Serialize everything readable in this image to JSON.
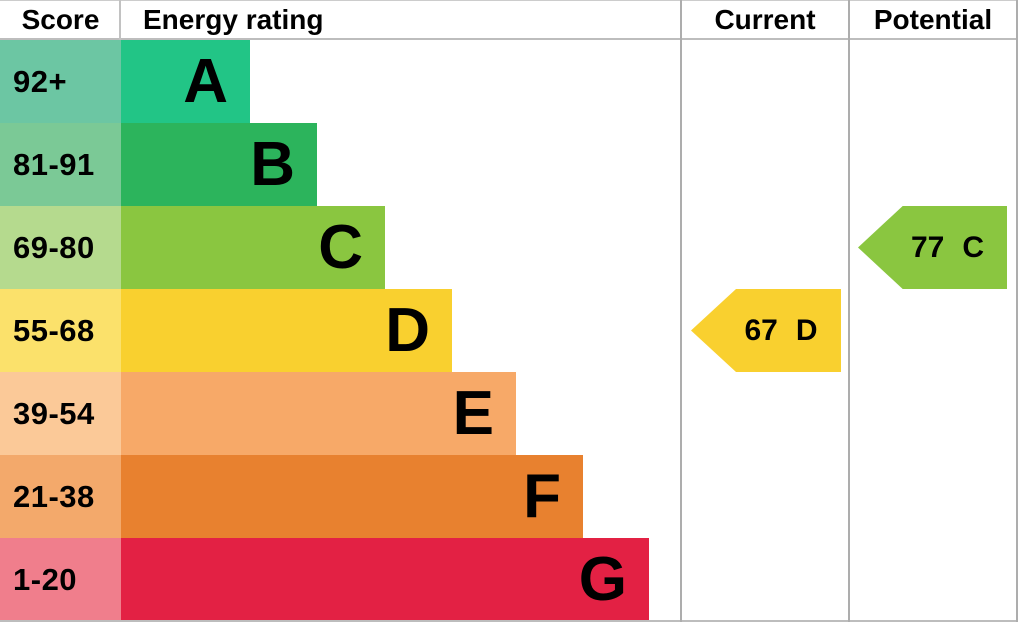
{
  "header": {
    "score": "Score",
    "energy_rating": "Energy rating",
    "current": "Current",
    "potential": "Potential"
  },
  "bands": [
    {
      "score": "92+",
      "letter": "A",
      "score_bg": "#6cc6a3",
      "bar_bg": "#22c586"
    },
    {
      "score": "81-91",
      "letter": "B",
      "score_bg": "#7bc996",
      "bar_bg": "#2cb45c"
    },
    {
      "score": "69-80",
      "letter": "C",
      "score_bg": "#b5da8e",
      "bar_bg": "#8ac640"
    },
    {
      "score": "55-68",
      "letter": "D",
      "score_bg": "#fbe16b",
      "bar_bg": "#f9d02f"
    },
    {
      "score": "39-54",
      "letter": "E",
      "score_bg": "#fbc998",
      "bar_bg": "#f7a968"
    },
    {
      "score": "21-38",
      "letter": "F",
      "score_bg": "#f3a96b",
      "bar_bg": "#e8812f"
    },
    {
      "score": "1-20",
      "letter": "G",
      "score_bg": "#f07e8c",
      "bar_bg": "#e32144"
    }
  ],
  "current": {
    "value": "67",
    "letter": "D",
    "bg": "#f9d02f"
  },
  "potential": {
    "value": "77",
    "letter": "C",
    "bg": "#8ac640"
  },
  "colors": {
    "grid_line": "#adadad",
    "text": "#000000"
  },
  "chart_data": {
    "type": "bar",
    "title": "Energy rating",
    "orientation": "horizontal",
    "categories": [
      "A",
      "B",
      "C",
      "D",
      "E",
      "F",
      "G"
    ],
    "score_ranges": [
      "92+",
      "81-91",
      "69-80",
      "55-68",
      "39-54",
      "21-38",
      "1-20"
    ],
    "band_colors": [
      "#22c586",
      "#2cb45c",
      "#8ac640",
      "#f9d02f",
      "#f7a968",
      "#e8812f",
      "#e32144"
    ],
    "bar_lengths_relative": [
      1,
      2,
      3,
      4,
      5,
      6,
      7
    ],
    "columns": [
      "Score",
      "Energy rating",
      "Current",
      "Potential"
    ],
    "current": {
      "score": 67,
      "rating": "D"
    },
    "potential": {
      "score": 77,
      "rating": "C"
    },
    "legend": false,
    "grid": false
  }
}
